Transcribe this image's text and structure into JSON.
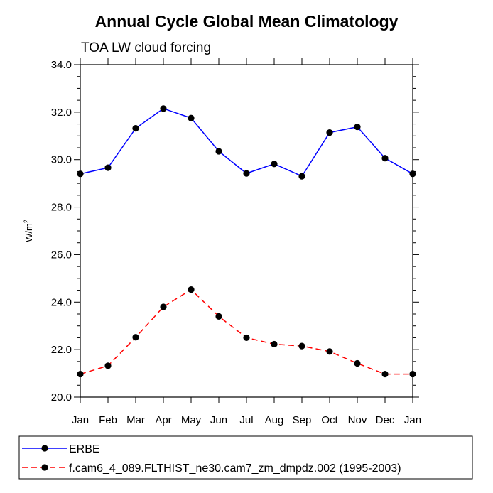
{
  "chart_data": {
    "type": "line",
    "title": "Annual Cycle Global Mean Climatology",
    "subtitle": "TOA LW cloud forcing",
    "ylabel": "W/m",
    "ylabel_superscript": "2",
    "ylim": [
      20.0,
      34.0
    ],
    "y_ticks": [
      "20.0",
      "22.0",
      "24.0",
      "26.0",
      "28.0",
      "30.0",
      "32.0",
      "34.0"
    ],
    "categories": [
      "Jan",
      "Feb",
      "Mar",
      "Apr",
      "May",
      "Jun",
      "Jul",
      "Aug",
      "Sep",
      "Oct",
      "Nov",
      "Dec",
      "Jan"
    ],
    "series": [
      {
        "name": "ERBE",
        "color": "#0000ff",
        "line_style": "solid",
        "marker": "filled-circle",
        "values": [
          29.4,
          29.66,
          31.32,
          32.15,
          31.75,
          30.35,
          29.42,
          29.82,
          29.3,
          31.14,
          31.38,
          30.06,
          29.4
        ]
      },
      {
        "name": "f.cam6_4_089.FLTHIST_ne30.cam7_zm_dmpdz.002 (1995-2003)",
        "color": "#ff0000",
        "line_style": "dashed",
        "marker": "filled-circle",
        "values": [
          20.97,
          21.32,
          22.52,
          23.8,
          24.53,
          23.4,
          22.5,
          22.23,
          22.15,
          21.92,
          21.42,
          20.97,
          20.97
        ]
      }
    ],
    "grid": false,
    "legend_placement": "bottom"
  }
}
